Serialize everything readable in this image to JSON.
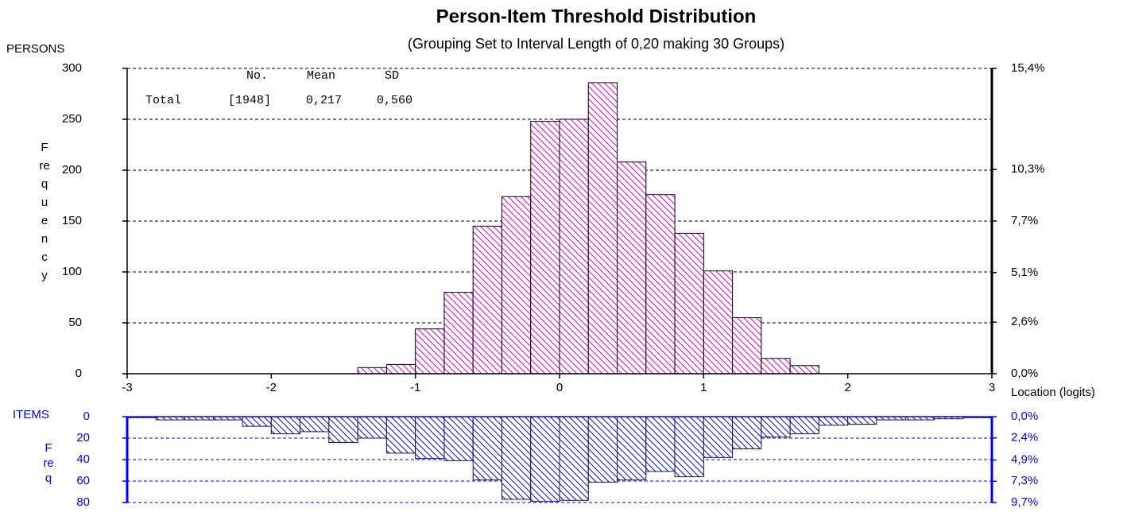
{
  "chart_data": [
    {
      "type": "histogram",
      "title": "Person-Item Threshold Distribution",
      "subtitle": "(Grouping Set to Interval Length of  0,20  making  30  Groups)",
      "x_label": "Location (logits)",
      "y_label": "Frequency",
      "stats": {
        "headers": [
          "No.",
          "Mean",
          "SD"
        ],
        "row": [
          "Total",
          "[1948]",
          "0,217",
          "0,560"
        ]
      },
      "bins": [
        -3,
        -2.8,
        -2.6,
        -2.4,
        -2.2,
        -2,
        -1.8,
        -1.6,
        -1.4,
        -1.2,
        -1,
        -0.8,
        -0.6,
        -0.4,
        -0.2,
        0,
        0.2,
        0.4,
        0.6,
        0.8,
        1,
        1.2,
        1.4,
        1.6,
        1.8,
        2,
        2.2,
        2.4,
        2.6,
        2.8,
        3
      ],
      "series": [
        {
          "name": "PERSONS",
          "color": "#e020e0",
          "values": [
            0,
            0,
            0,
            0,
            0,
            0,
            0,
            0,
            6,
            9,
            44,
            80,
            145,
            174,
            248,
            250,
            286,
            208,
            176,
            138,
            101,
            55,
            15,
            8,
            0,
            0,
            0,
            0,
            0,
            0
          ]
        }
      ],
      "xlim": [
        -3,
        3
      ],
      "xticks": [
        -3,
        -2,
        -1,
        0,
        1,
        2,
        3
      ],
      "ylim": [
        0,
        300
      ],
      "yticks": [
        0,
        50,
        100,
        150,
        200,
        250,
        300
      ],
      "y2lim": [
        0,
        15.4
      ],
      "y2ticks": [
        {
          "value": 0,
          "label": "0,0%"
        },
        {
          "value": 2.6,
          "label": "2,6%"
        },
        {
          "value": 5.1,
          "label": "5,1%"
        },
        {
          "value": 7.7,
          "label": "7,7%"
        },
        {
          "value": 10.3,
          "label": "10,3%"
        },
        {
          "value": 15.4,
          "label": "15,4%"
        }
      ],
      "grid": true,
      "axis_color": "#000000"
    },
    {
      "type": "histogram",
      "y_label": "Freq",
      "bins": [
        -3,
        -2.8,
        -2.6,
        -2.4,
        -2.2,
        -2,
        -1.8,
        -1.6,
        -1.4,
        -1.2,
        -1,
        -0.8,
        -0.6,
        -0.4,
        -0.2,
        0,
        0.2,
        0.4,
        0.6,
        0.8,
        1,
        1.2,
        1.4,
        1.6,
        1.8,
        2,
        2.2,
        2.4,
        2.6,
        2.8,
        3
      ],
      "series": [
        {
          "name": "ITEMS",
          "color": "#2030c0",
          "values": [
            1,
            3,
            3,
            3,
            9,
            16,
            14,
            24,
            20,
            34,
            39,
            41,
            59,
            77,
            79,
            78,
            61,
            59,
            51,
            56,
            38,
            30,
            19,
            16,
            8,
            7,
            3,
            3,
            2,
            1
          ]
        }
      ],
      "xlim": [
        -3,
        3
      ],
      "ylim": [
        80,
        0
      ],
      "yticks": [
        0,
        20,
        40,
        60,
        80
      ],
      "y2lim": [
        9.7,
        0
      ],
      "y2ticks": [
        {
          "value": 0,
          "label": "0,0%"
        },
        {
          "value": 2.4,
          "label": "2,4%"
        },
        {
          "value": 4.9,
          "label": "4,9%"
        },
        {
          "value": 7.3,
          "label": "7,3%"
        },
        {
          "value": 9.7,
          "label": "9,7%"
        }
      ],
      "grid": true,
      "axis_color": "#0000ff"
    }
  ]
}
